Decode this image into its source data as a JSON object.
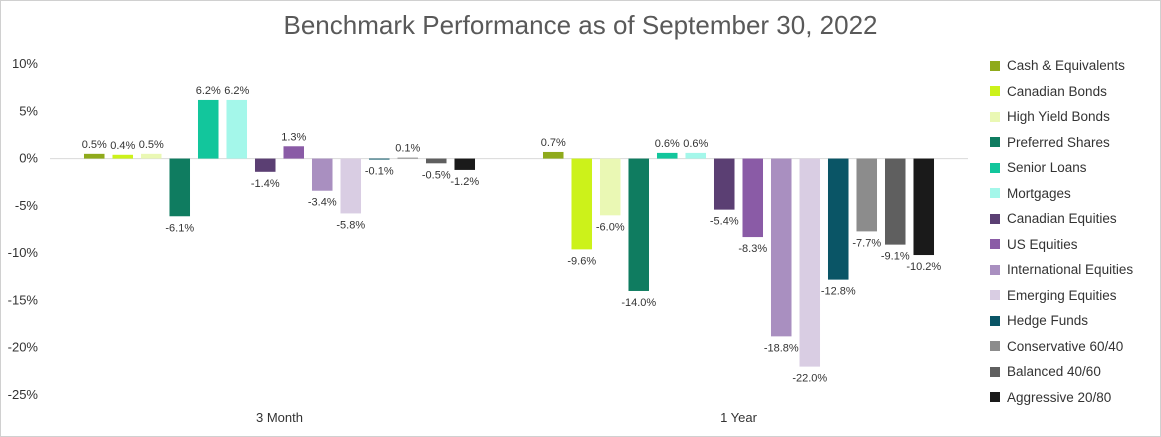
{
  "chart_data": {
    "type": "bar",
    "title": "Benchmark Performance as of September 30, 2022",
    "xlabel": "",
    "ylabel": "",
    "categories": [
      "3 Month",
      "1 Year"
    ],
    "ylim": [
      -25,
      10
    ],
    "yticks": [
      10,
      5,
      0,
      -5,
      -10,
      -15,
      -20,
      -25
    ],
    "ytick_labels": [
      "10%",
      "5%",
      "0%",
      "-5%",
      "-10%",
      "-15%",
      "-20%",
      "-25%"
    ],
    "grid": false,
    "legend_position": "right",
    "series": [
      {
        "name": "Cash & Equivalents",
        "color": "#8faa1b",
        "values": [
          0.5,
          0.7
        ],
        "labels": [
          "0.5%",
          "0.7%"
        ]
      },
      {
        "name": "Canadian Bonds",
        "color": "#ccf21a",
        "values": [
          0.4,
          -9.6
        ],
        "labels": [
          "0.4%",
          "-9.6%"
        ]
      },
      {
        "name": "High Yield Bonds",
        "color": "#eaf8b4",
        "values": [
          0.5,
          -6.0
        ],
        "labels": [
          "0.5%",
          "-6.0%"
        ]
      },
      {
        "name": "Preferred Shares",
        "color": "#0f7c60",
        "values": [
          -6.1,
          -14.0
        ],
        "labels": [
          "-6.1%",
          "-14.0%"
        ]
      },
      {
        "name": "Senior Loans",
        "color": "#12c69c",
        "values": [
          6.2,
          0.6
        ],
        "labels": [
          "6.2%",
          "0.6%"
        ]
      },
      {
        "name": "Mortgages",
        "color": "#a4f7ea",
        "values": [
          6.2,
          0.6
        ],
        "labels": [
          "6.2%",
          "0.6%"
        ]
      },
      {
        "name": "Canadian Equities",
        "color": "#5b3f73",
        "values": [
          -1.4,
          -5.4
        ],
        "labels": [
          "-1.4%",
          "-5.4%"
        ]
      },
      {
        "name": "US Equities",
        "color": "#8a5ba6",
        "values": [
          1.3,
          -8.3
        ],
        "labels": [
          "1.3%",
          "-8.3%"
        ]
      },
      {
        "name": "International Equities",
        "color": "#a98fc0",
        "values": [
          -3.4,
          -18.8
        ],
        "labels": [
          "-3.4%",
          "-18.8%"
        ]
      },
      {
        "name": "Emerging Equities",
        "color": "#d9cde3",
        "values": [
          -5.8,
          -22.0
        ],
        "labels": [
          "-5.8%",
          "-22.0%"
        ]
      },
      {
        "name": "Hedge Funds",
        "color": "#0a5566",
        "values": [
          -0.1,
          -12.8
        ],
        "labels": [
          "-0.1%",
          "-12.8%"
        ]
      },
      {
        "name": "Conservative 60/40",
        "color": "#8c8c8c",
        "values": [
          0.1,
          -7.7
        ],
        "labels": [
          "0.1%",
          "-7.7%"
        ]
      },
      {
        "name": "Balanced 40/60",
        "color": "#5f5f5f",
        "values": [
          -0.5,
          -9.1
        ],
        "labels": [
          "-0.5%",
          "-9.1%"
        ]
      },
      {
        "name": "Aggressive 20/80",
        "color": "#1a1a1a",
        "values": [
          -1.2,
          -10.2
        ],
        "labels": [
          "-1.2%",
          "-10.2%"
        ]
      }
    ]
  }
}
